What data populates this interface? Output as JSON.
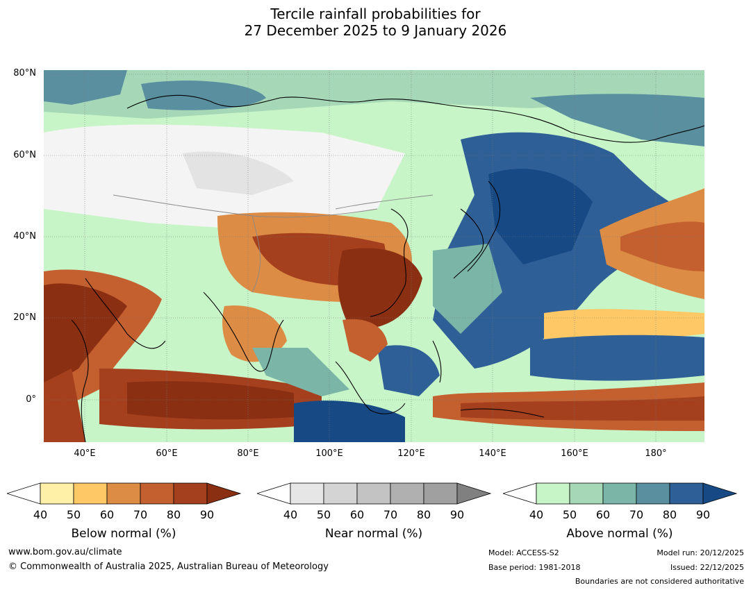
{
  "title": {
    "line1": "Tercile rainfall probabilities for",
    "line2": "27 December 2025 to 9 January 2026"
  },
  "map": {
    "lat_labels": [
      "80°N",
      "60°N",
      "40°N",
      "20°N",
      "0°"
    ],
    "lon_labels": [
      "40°E",
      "60°E",
      "80°E",
      "100°E",
      "120°E",
      "140°E",
      "160°E",
      "180°"
    ],
    "region_colors": {
      "below_90": "#8b2f12",
      "below_80": "#a5401e",
      "below_70": "#c4602f",
      "below_60": "#dc8c44",
      "below_50": "#fec867",
      "below_40": "#fff0a8",
      "near": "#e3e3e3",
      "above_40": "#c8f5c8",
      "above_50": "#a6d8b8",
      "above_60": "#7ab5a8",
      "above_70": "#5a8fa0",
      "above_80": "#2f5f97",
      "above_90": "#174a85",
      "coast": "#000000",
      "border": "#888888"
    }
  },
  "colorbars": {
    "below": {
      "label": "Below normal (%)",
      "ticks": [
        "40",
        "50",
        "60",
        "70",
        "80",
        "90"
      ],
      "colors": [
        "#ffffff",
        "#fff0a8",
        "#fec867",
        "#dc8c44",
        "#c4602f",
        "#a5401e",
        "#8b2f12"
      ]
    },
    "near": {
      "label": "Near normal (%)",
      "ticks": [
        "40",
        "50",
        "60",
        "70",
        "80",
        "90"
      ],
      "colors": [
        "#ffffff",
        "#e6e6e6",
        "#d4d4d4",
        "#c3c3c3",
        "#b0b0b0",
        "#a0a0a0",
        "#808080"
      ]
    },
    "above": {
      "label": "Above normal (%)",
      "ticks": [
        "40",
        "50",
        "60",
        "70",
        "80",
        "90"
      ],
      "colors": [
        "#ffffff",
        "#c8f5c8",
        "#a6d8b8",
        "#7ab5a8",
        "#5a8fa0",
        "#2f5f97",
        "#174a85"
      ]
    }
  },
  "footer": {
    "website": "www.bom.gov.au/climate",
    "copyright": "© Commonwealth of Australia 2025, Australian Bureau of Meteorology",
    "model": "Model: ACCESS-S2",
    "base_period": "Base period: 1981-2018",
    "model_run": "Model run: 20/12/2025",
    "issued": "Issued: 22/12/2025",
    "disclaimer": "Boundaries are not considered authoritative"
  }
}
